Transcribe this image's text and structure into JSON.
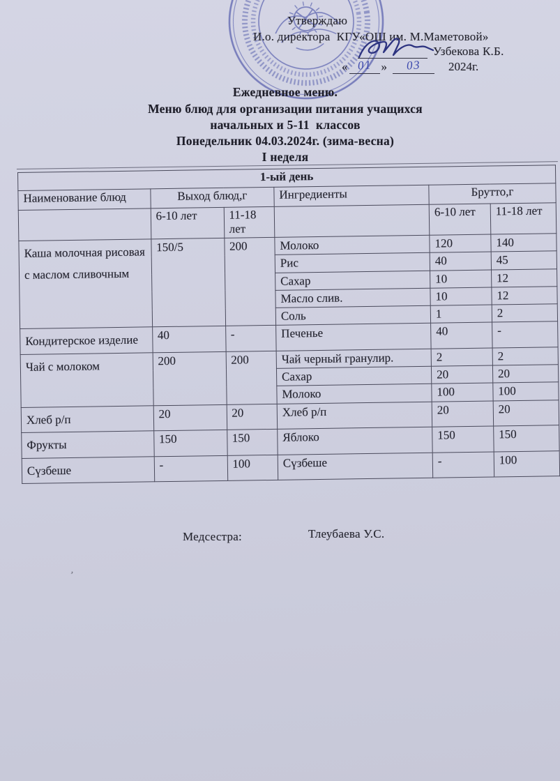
{
  "colors": {
    "paper": "#cfd0e0",
    "ink": "#26262f",
    "stamp": "#4a55b7",
    "handwriting": "#3a47ad"
  },
  "approval": {
    "approve_word": "Утверждаю",
    "director_line": "И.о. директора  КГУ«ОШ им. М.Маметовой»",
    "signature_icon": "handwritten-signature",
    "signature_name": "Узбекова К.Б.",
    "quote_open": "«",
    "quote_close": "»",
    "date_day": "01",
    "date_month": "03",
    "date_year": "2024г.",
    "stamp_icon": "state-emblem-round-stamp"
  },
  "title": {
    "line1": "Ежедневное меню.",
    "line2": "Меню блюд для организации питания учащихся",
    "line3": "начальных и 5-11  классов",
    "line4": "Понедельник 04.03.2024г. (зима-весна)",
    "line5": "I неделя"
  },
  "menu_table": {
    "day_header": "1-ый день",
    "headers": {
      "dish": "Наименование блюд",
      "yield": "Выход блюд,г",
      "ingredients": "Ингредиенты",
      "gross": "Брутто,г",
      "age_6_10": "6-10 лет",
      "age_11_18": "11-18 лет"
    },
    "rows": [
      {
        "dish": "Каша молочная рисовая с маслом сливочным",
        "yield_6_10": "150/5",
        "yield_11_18": "200",
        "ingredients": [
          {
            "name": "Молоко",
            "gross_6_10": "120",
            "gross_11_18": "140"
          },
          {
            "name": "Рис",
            "gross_6_10": "40",
            "gross_11_18": "45"
          },
          {
            "name": "Сахар",
            "gross_6_10": "10",
            "gross_11_18": "12"
          },
          {
            "name": "Масло слив.",
            "gross_6_10": "10",
            "gross_11_18": "12"
          },
          {
            "name": "Соль",
            "gross_6_10": "1",
            "gross_11_18": "2"
          }
        ]
      },
      {
        "dish": "Кондитерское изделие",
        "yield_6_10": "40",
        "yield_11_18": "-",
        "ingredients": [
          {
            "name": "Печенье",
            "gross_6_10": "40",
            "gross_11_18": "-"
          }
        ]
      },
      {
        "dish": "Чай  с молоком",
        "yield_6_10": "200",
        "yield_11_18": "200",
        "ingredients": [
          {
            "name": "Чай черный гранулир.",
            "gross_6_10": "2",
            "gross_11_18": "2"
          },
          {
            "name": "Сахар",
            "gross_6_10": "20",
            "gross_11_18": "20"
          },
          {
            "name": "Молоко",
            "gross_6_10": "100",
            "gross_11_18": "100"
          }
        ]
      },
      {
        "dish": "Хлеб р/п",
        "yield_6_10": "20",
        "yield_11_18": "20",
        "ingredients": [
          {
            "name": "Хлеб р/п",
            "gross_6_10": "20",
            "gross_11_18": "20"
          }
        ]
      },
      {
        "dish": "Фрукты",
        "yield_6_10": "150",
        "yield_11_18": "150",
        "ingredients": [
          {
            "name": "Яблоко",
            "gross_6_10": "150",
            "gross_11_18": "150"
          }
        ]
      },
      {
        "dish": "Сүзбеше",
        "yield_6_10": "-",
        "yield_11_18": "100",
        "ingredients": [
          {
            "name": "Сүзбеше",
            "gross_6_10": "-",
            "gross_11_18": "100"
          }
        ]
      }
    ]
  },
  "footer": {
    "label": "Медсестра:",
    "name": "Тлеубаева У.С."
  }
}
